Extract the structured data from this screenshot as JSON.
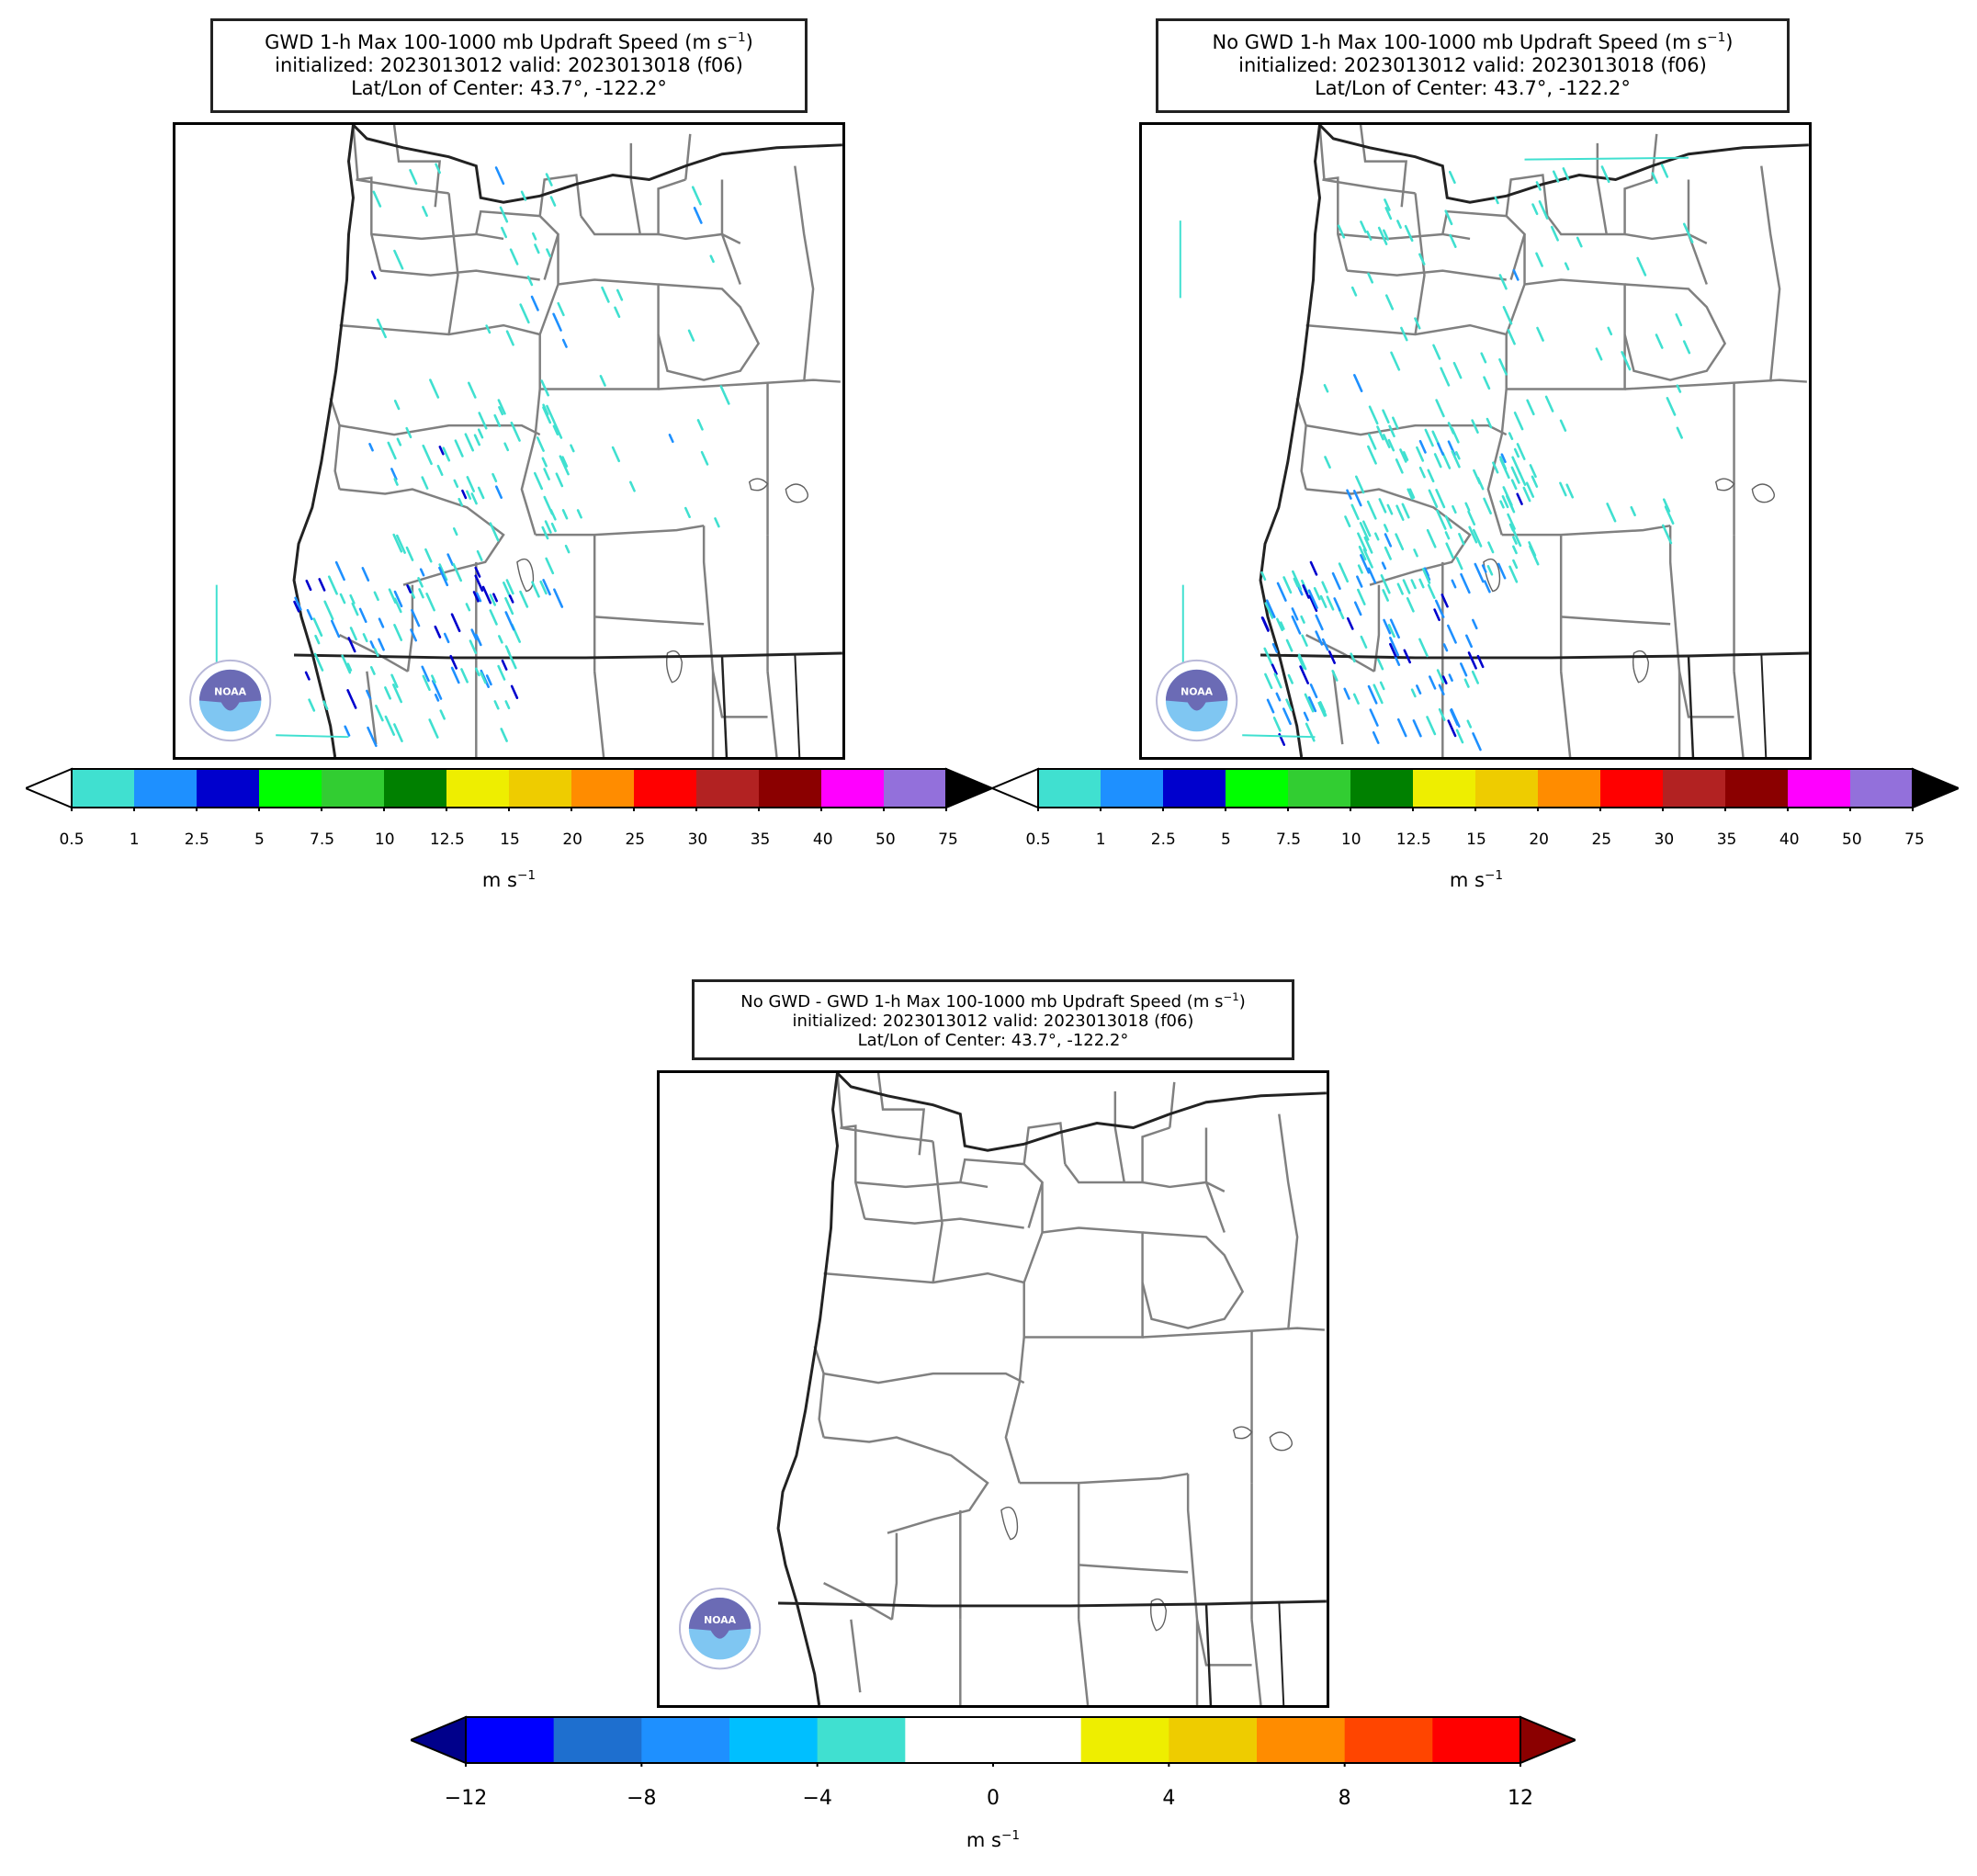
{
  "panels": [
    {
      "title_line1": "GWD 1-h Max 100-1000 mb Updraft Speed (m s",
      "title_line1_sup": "−1",
      "title_line1_end": ")",
      "title_line2": "initialized: 2023013012 valid: 2023013018 (f06)",
      "title_line3": "Lat/Lon of Center: 43.7°, -122.2°",
      "colorbar_ticks": [
        "0.5",
        "1",
        "2.5",
        "5",
        "7.5",
        "10",
        "12.5",
        "15",
        "20",
        "25",
        "30",
        "35",
        "40",
        "50",
        "75"
      ],
      "unit": "m s",
      "unit_sup": "−1"
    },
    {
      "title_line1": "No GWD 1-h Max 100-1000 mb Updraft Speed (m s",
      "title_line1_sup": "−1",
      "title_line1_end": ")",
      "title_line2": "initialized: 2023013012 valid: 2023013018 (f06)",
      "title_line3": "Lat/Lon of Center: 43.7°, -122.2°",
      "colorbar_ticks": [
        "0.5",
        "1",
        "2.5",
        "5",
        "7.5",
        "10",
        "12.5",
        "15",
        "20",
        "25",
        "30",
        "35",
        "40",
        "50",
        "75"
      ],
      "unit": "m s",
      "unit_sup": "−1"
    },
    {
      "title_line1": "No GWD - GWD 1-h Max 100-1000 mb Updraft Speed (m s",
      "title_line1_sup": "−1",
      "title_line1_end": ")",
      "title_line2": "initialized: 2023013012 valid: 2023013018 (f06)",
      "title_line3": "Lat/Lon of Center: 43.7°, -122.2°",
      "colorbar_ticks": [
        "−12",
        "−8",
        "−4",
        "0",
        "4",
        "8",
        "12"
      ],
      "unit": "m s",
      "unit_sup": "−1"
    }
  ],
  "colors": {
    "updraft_scale": [
      "#40e0d0",
      "#1e90ff",
      "#0000cd",
      "#00ff00",
      "#32cd32",
      "#008000",
      "#eeee00",
      "#eecc00",
      "#ff8c00",
      "#ff0000",
      "#b22222",
      "#8b0000",
      "#ff00ff",
      "#9370db"
    ],
    "updraft_under": "#ffffff",
    "updraft_over": "#000000",
    "diff_scale": [
      "#0000ff",
      "#1e6fcf",
      "#1e90ff",
      "#00bfff",
      "#40e0d0",
      "#ffffff",
      "#ffffff",
      "#eeee00",
      "#eecc00",
      "#ff8c00",
      "#ff4500",
      "#ff0000"
    ],
    "diff_under": "#00008b",
    "diff_over": "#8b0000"
  },
  "logo_text": "NOAA"
}
